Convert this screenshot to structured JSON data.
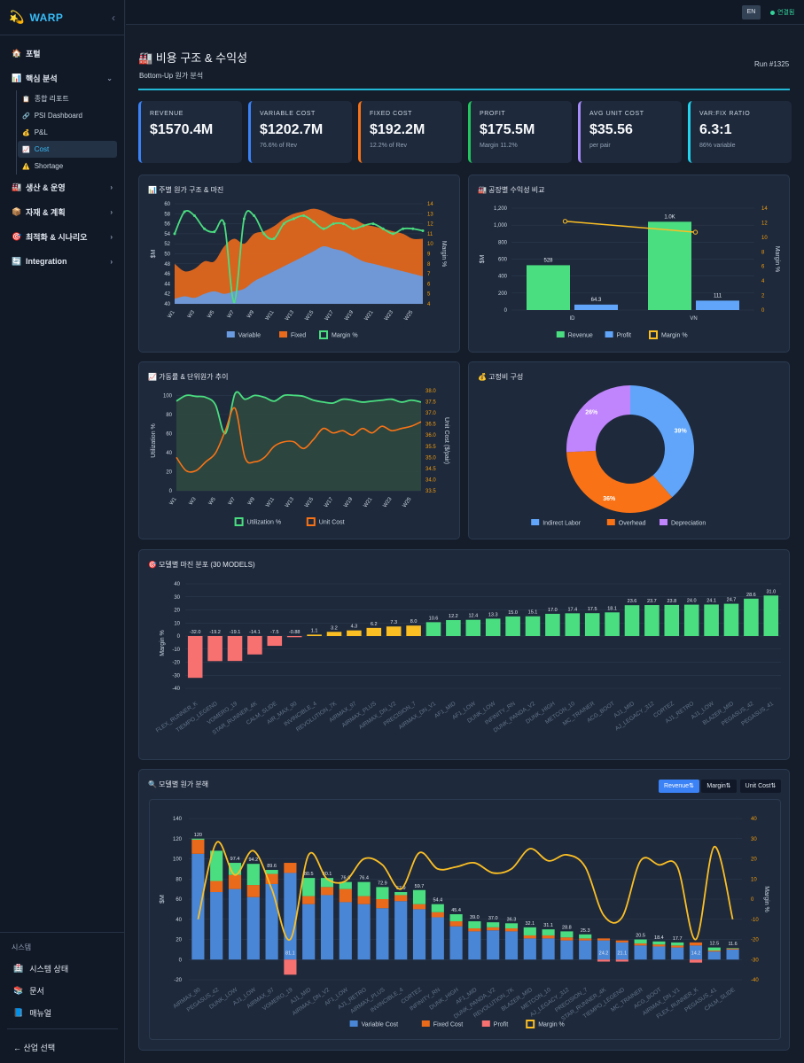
{
  "app": {
    "logo_icon": "💫",
    "name": "WARP",
    "collapse": "‹"
  },
  "sidebar": {
    "items": [
      {
        "icon": "🏠",
        "label": "포털",
        "chevron": ""
      },
      {
        "icon": "📊",
        "label": "핵심 분석",
        "chevron": "⌄"
      },
      {
        "icon": "🏭",
        "label": "생산 & 운영",
        "chevron": "›"
      },
      {
        "icon": "📦",
        "label": "자재 & 계획",
        "chevron": "›"
      },
      {
        "icon": "🎯",
        "label": "최적화 & 시나리오",
        "chevron": "›"
      },
      {
        "icon": "🔄",
        "label": "Integration",
        "chevron": "›"
      }
    ],
    "sub_items": [
      {
        "icon": "📋",
        "label": "종합 리포트"
      },
      {
        "icon": "🔗",
        "label": "PSI Dashboard"
      },
      {
        "icon": "💰",
        "label": "P&L"
      },
      {
        "icon": "📈",
        "label": "Cost"
      },
      {
        "icon": "⚠️",
        "label": "Shortage"
      }
    ],
    "system_title": "시스템",
    "system_items": [
      {
        "icon": "🏥",
        "label": "시스템 상태"
      },
      {
        "icon": "📚",
        "label": "문서"
      },
      {
        "icon": "📘",
        "label": "매뉴얼"
      }
    ],
    "back_label": "← 산업 선택"
  },
  "topbar": {
    "lang": "EN",
    "status": "연결됨"
  },
  "header": {
    "title": "🏭 비용 구조 & 수익성",
    "subtitle": "Bottom-Up 원가 분석",
    "run": "Run #1325"
  },
  "kpis": [
    {
      "label": "REVENUE",
      "value": "$1570.4M",
      "sub": "",
      "color": "#3b82f6"
    },
    {
      "label": "VARIABLE COST",
      "value": "$1202.7M",
      "sub": "76.6% of Rev",
      "color": "#3b82f6"
    },
    {
      "label": "FIXED COST",
      "value": "$192.2M",
      "sub": "12.2% of Rev",
      "color": "#f97316"
    },
    {
      "label": "PROFIT",
      "value": "$175.5M",
      "sub": "Margin 11.2%",
      "color": "#22c55e"
    },
    {
      "label": "AVG UNIT COST",
      "value": "$35.56",
      "sub": "per pair",
      "color": "#a78bfa"
    },
    {
      "label": "VAR:FIX RATIO",
      "value": "6.3:1",
      "sub": "86% variable",
      "color": "#22d3ee"
    }
  ],
  "cards": {
    "weekly": "📊 주별 원가 구조 & 마진",
    "factory": "🏭 공장별 수익성 비교",
    "util": "📈 가동률 & 단위원가 추이",
    "fixed": "💰 고정비 구성",
    "margin_dist": "🎯 모델별 마진 분포 (30 MODELS)",
    "breakdown": "🔍 모델별 원가 분해"
  },
  "toggles": [
    "Revenue⇅",
    "Margin⇅",
    "Unit Cost⇅"
  ],
  "chart_data": [
    {
      "type": "area",
      "title": "주별 원가 구조 & 마진",
      "ylabel": "$M",
      "y2label": "Margin %",
      "ylim": [
        40,
        60
      ],
      "y2lim": [
        4,
        14
      ],
      "x_ticks": [
        "W1",
        "W3",
        "W5",
        "W7",
        "W9",
        "W11",
        "W13",
        "W15",
        "W17",
        "W19",
        "W21",
        "W23",
        "W25"
      ],
      "weeks": 26,
      "series": [
        {
          "name": "Variable",
          "color": "#6a9ae0",
          "values": [
            41,
            41.5,
            41.2,
            42,
            42.5,
            42,
            42.5,
            43,
            44.5,
            45.5,
            46.5,
            47.5,
            48.5,
            49.5,
            50.5,
            51.5,
            51,
            50.5,
            49.5,
            48.5,
            48,
            47.5,
            47,
            46.5,
            46,
            45.5
          ]
        },
        {
          "name": "Fixed",
          "color": "#ea6a1c",
          "values": [
            48,
            46.5,
            47,
            48.5,
            48.5,
            51.5,
            53,
            52,
            54,
            54.5,
            55.5,
            57,
            58,
            58.5,
            59,
            58.5,
            57.5,
            57,
            57,
            56,
            55.5,
            55,
            54.5,
            54,
            53,
            53
          ]
        },
        {
          "name": "Margin %",
          "color": "#4ade80",
          "axis": "right",
          "values": [
            11,
            13.2,
            12.8,
            11.5,
            11.2,
            12,
            4.2,
            12.5,
            12.8,
            11,
            10.5,
            12,
            12.5,
            12.8,
            12.2,
            11.5,
            12,
            12,
            11.5,
            11.8,
            12,
            11.5,
            11,
            11.5,
            11.5,
            11.3
          ]
        }
      ]
    },
    {
      "type": "bar",
      "title": "공장별 수익성 비교",
      "categories": [
        "ID",
        "VN"
      ],
      "ylabel": "$M",
      "y2label": "Margin %",
      "ylim": [
        0,
        1200
      ],
      "y2lim": [
        0,
        14
      ],
      "y_ticks": [
        "0",
        "200",
        "400",
        "600",
        "800",
        "1,000",
        "1,200"
      ],
      "series": [
        {
          "name": "Revenue",
          "color": "#4ade80",
          "values": [
            528,
            1040
          ],
          "labels": [
            "528",
            "1.0K"
          ]
        },
        {
          "name": "Profit",
          "color": "#60a5fa",
          "values": [
            64.3,
            111
          ],
          "labels": [
            "64.3",
            "111"
          ]
        },
        {
          "name": "Margin %",
          "color": "#fbbf24",
          "axis": "right",
          "values": [
            12.2,
            10.7
          ]
        }
      ]
    },
    {
      "type": "line",
      "title": "가동률 & 단위원가 추이",
      "ylabel": "Utilization %",
      "y2label": "Unit Cost ($/pair)",
      "ylim": [
        0,
        105
      ],
      "y2lim": [
        33.5,
        38
      ],
      "y_ticks": [
        "0",
        "20",
        "40",
        "60",
        "80",
        "100"
      ],
      "y2_ticks": [
        "33.5",
        "34.0",
        "34.5",
        "35.0",
        "35.5",
        "36.0",
        "36.5",
        "37.0",
        "37.5",
        "38.0"
      ],
      "x_ticks": [
        "W1",
        "W3",
        "W5",
        "W7",
        "W9",
        "W11",
        "W13",
        "W15",
        "W17",
        "W19",
        "W21",
        "W23",
        "W25"
      ],
      "series": [
        {
          "name": "Utilization %",
          "color": "#4ade80",
          "values": [
            94,
            100,
            99,
            98,
            90,
            60,
            102,
            96,
            100,
            98,
            94,
            100,
            100,
            99,
            95,
            93,
            92,
            96,
            95,
            93,
            94,
            95,
            96,
            93,
            95,
            93
          ]
        },
        {
          "name": "Unit Cost",
          "color": "#f97316",
          "axis": "right",
          "values": [
            35,
            34.4,
            34.4,
            34.8,
            35.2,
            36.2,
            37.2,
            35,
            34.8,
            35,
            35.5,
            35.7,
            35.7,
            35.4,
            35.8,
            36.3,
            36.1,
            36.2,
            36,
            36.3,
            36.1,
            36.4,
            36.2,
            36.3,
            36.4,
            36.6
          ]
        }
      ]
    },
    {
      "type": "pie",
      "title": "고정비 구성",
      "slices": [
        {
          "name": "Indirect Labor",
          "value": 39,
          "label": "39%",
          "color": "#60a5fa"
        },
        {
          "name": "Overhead",
          "value": 36,
          "label": "36%",
          "color": "#f97316"
        },
        {
          "name": "Depreciation",
          "value": 26,
          "label": "26%",
          "color": "#c084fc"
        }
      ]
    },
    {
      "type": "bar",
      "title": "모델별 마진 분포 (30 MODELS)",
      "ylabel": "Margin %",
      "ylim": [
        -40,
        40
      ],
      "y_ticks": [
        "-40",
        "-30",
        "-20",
        "-10",
        "0",
        "10",
        "20",
        "30",
        "40"
      ],
      "categories": [
        "FLEX_RUNNER_K",
        "TIEMPO_LEGEND",
        "VOMERO_19",
        "STAR_RUNNER_4K",
        "CALM_SLIDE",
        "AIR_MAX_90",
        "INVINCIBLE_4",
        "REVOLUTION_7K",
        "AIRMAX_97",
        "AIRMAX_PLUS",
        "AIRMAX_DN_V2",
        "PRECISION_7",
        "AIRMAX_DN_V1",
        "AF1_MID",
        "AF1_LOW",
        "DUNK_LOW",
        "INFINITY_RN",
        "DUNK_PANDA_V2",
        "DUNK_HIGH",
        "METCON_10",
        "MC_TRAINER",
        "ACG_BOOT",
        "AJ1_MID",
        "AJ_LEGACY_312",
        "CORTEZ",
        "AJ1_RETRO",
        "AJ1_LOW",
        "BLAZER_MID",
        "PEGASUS_42",
        "PEGASUS_41"
      ],
      "values": [
        -32.0,
        -19.2,
        -19.1,
        -14.1,
        -7.5,
        -0.88,
        1.1,
        3.2,
        4.3,
        6.2,
        7.3,
        8.0,
        10.6,
        12.2,
        12.4,
        13.3,
        15.0,
        15.1,
        17.0,
        17.4,
        17.5,
        18.1,
        23.6,
        23.7,
        23.8,
        24.0,
        24.1,
        24.7,
        28.6,
        31.0
      ],
      "labels": [
        "-32.0",
        "-19.2",
        "-19.1",
        "-14.1",
        "-7.5",
        "-0.88",
        "1.1",
        "3.2",
        "4.3",
        "6.2",
        "7.3",
        "8.0",
        "10.6",
        "12.2",
        "12.4",
        "13.3",
        "15.0",
        "15.1",
        "17.0",
        "17.4",
        "17.5",
        "18.1",
        "23.6",
        "23.7",
        "23.8",
        "24.0",
        "24.1",
        "24.7",
        "28.6",
        "31.0"
      ],
      "colors": {
        "negative": "#f87171",
        "low": "#fbbf24",
        "high": "#4ade80"
      }
    },
    {
      "type": "bar",
      "title": "모델별 원가 분해",
      "ylabel": "$M",
      "y2label": "Margin %",
      "ylim": [
        -20,
        140
      ],
      "y2lim": [
        -40,
        40
      ],
      "y_ticks": [
        "-20",
        "0",
        "20",
        "40",
        "60",
        "80",
        "100",
        "120",
        "140"
      ],
      "y2_ticks": [
        "-40",
        "-30",
        "-20",
        "-10",
        "0",
        "10",
        "20",
        "30",
        "40"
      ],
      "categories": [
        "AIRMAX_90",
        "PEGASUS_42",
        "DUNK_LOW",
        "AJ1_LOW",
        "AIRMAX_97",
        "VOMERO_19",
        "AJ1_MID",
        "AIRMAX_DN_V2",
        "AF1_LOW",
        "AJ1_RETRO",
        "AIRMAX_PLUS",
        "INVINCIBLE_4",
        "CORTEZ",
        "INFINITY_RN",
        "DUNK_HIGH",
        "AF1_MID",
        "DUNK_PANDA_V2",
        "REVOLUTION_7K",
        "BLAZER_MID",
        "METCON_10",
        "AJ_LEGACY_312",
        "PRECISION_7",
        "STAR_RUNNER_4K",
        "TIEMPO_LEGEND",
        "MC_TRAINER",
        "ACG_BOOT",
        "AIRMAX_DN_V1",
        "FLEX_RUNNER_K",
        "PEGASUS_41",
        "CALM_SLIDE"
      ],
      "totals": [
        "120",
        "",
        "97.4",
        "94.2",
        "89.6",
        "81.1",
        "80.5",
        "80.1",
        "76.6",
        "76.4",
        "72.9",
        "67.9",
        "59.7",
        "54.4",
        "45.4",
        "39.0",
        "37.0",
        "36.3",
        "32.1",
        "31.1",
        "28.8",
        "25.3",
        "24.2",
        "21.1",
        "20.5",
        "18.4",
        "17.7",
        "14.2",
        "12.5",
        "11.6"
      ],
      "series": [
        {
          "name": "Variable Cost",
          "color": "#4a86d6",
          "values": [
            105,
            67,
            70,
            62,
            75,
            86,
            55,
            64,
            57,
            55,
            51,
            58,
            50,
            42,
            33,
            28,
            29,
            28,
            21,
            21,
            19,
            19,
            19,
            17,
            14,
            13,
            12,
            14,
            8,
            10
          ]
        },
        {
          "name": "Fixed Cost",
          "color": "#ea6a1c",
          "values": [
            14,
            11,
            14,
            12,
            10,
            10,
            8,
            8,
            13,
            8,
            9,
            6,
            5,
            5,
            5,
            3,
            3,
            3,
            3,
            3,
            3,
            2,
            2,
            2,
            2,
            2,
            2,
            3,
            1,
            1
          ]
        },
        {
          "name": "Profit",
          "color": "#f87171",
          "values": [
            1,
            30,
            12,
            21,
            4,
            -15,
            18,
            9,
            7,
            14,
            12,
            3,
            14,
            8,
            7,
            7,
            5,
            5,
            8,
            6,
            6,
            4,
            -2,
            -2,
            4,
            3,
            3,
            -3,
            3,
            0.5
          ]
        },
        {
          "name": "Margin %",
          "color": "#fbbf24",
          "axis": "right",
          "values": [
            -10,
            28,
            12,
            24,
            5,
            -20,
            22,
            10,
            9,
            20,
            17,
            5,
            23,
            15,
            16,
            18,
            13,
            15,
            25,
            19,
            22,
            16,
            -8,
            -9,
            19,
            17,
            16,
            -20,
            26,
            -10
          ]
        }
      ]
    }
  ]
}
